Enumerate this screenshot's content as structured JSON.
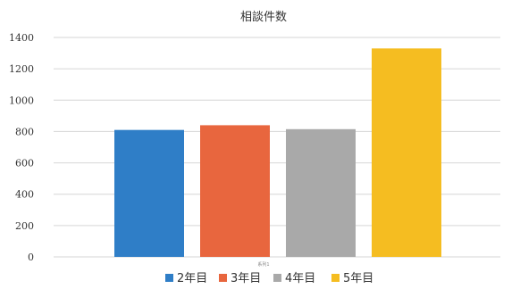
{
  "chart_data": {
    "type": "bar",
    "title": "相談件数",
    "xlabel": "",
    "ylabel": "",
    "categories": [
      "2年目",
      "3年目",
      "4年目",
      "5年目"
    ],
    "values": [
      810,
      840,
      815,
      1330
    ],
    "ylim": [
      0,
      1400
    ],
    "yticks": [
      0,
      200,
      400,
      600,
      800,
      1000,
      1200,
      1400
    ],
    "grid": true,
    "legend": "bottom",
    "axis_small_label": "系列1",
    "colors": [
      "#2f7ec7",
      "#e8663e",
      "#a9a9a9",
      "#f5bd21"
    ]
  }
}
